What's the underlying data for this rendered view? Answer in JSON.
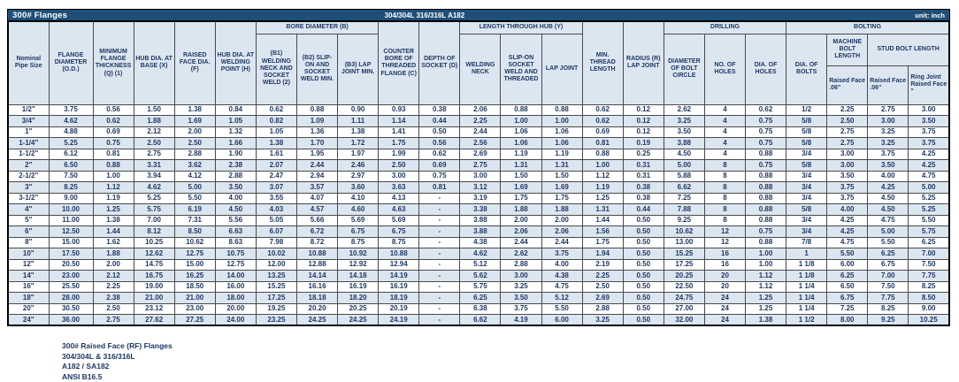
{
  "title_bar": {
    "title": "300# Flanges",
    "material": "304/304L 316/316L A182",
    "unit": "unit: inch"
  },
  "colors": {
    "title_bar_bg": "#1F4E79",
    "header_bg": "#DCE6F1",
    "alt_row_bg": "#DCE6F1",
    "text": "#1F3864",
    "border": "#4a4a4a"
  },
  "table": {
    "groups": {
      "bore": "BORE DIAMETER (B)",
      "length_hub": "LENGTH THROUGH HUB (Y)",
      "drilling": "DRILLING",
      "bolting": "BOLTING"
    },
    "cols": {
      "pipe": "Nominal Pipe Size",
      "od": "FLANGE DIAMETER (O.D.)",
      "q": "MINIMUM FLANGE THICKNESS (Q) (1)",
      "x": "HUB DIA. AT BASE (X)",
      "f": "RAISED FACE DIA. (F)",
      "h": "HUB DIA. AT WELDING POINT (H)",
      "b1": "(B1) WELDING NECK AND SOCKET WELD (2)",
      "b2": "(B2) SLIP-ON AND SOCKET WELD MIN.",
      "b3": "(B3) LAP JOINT MIN.",
      "c": "COUNTER BORE OF THREADED FLANGE (C)",
      "d": "DEPTH OF SOCKET (D)",
      "wn": "WELDING NECK",
      "so": "SLIP-ON SOCKET WELD AND THREADED",
      "lj": "LAP JOINT",
      "mt": "MIN. THREAD LENGTH",
      "r": "RADIUS (R) LAP JOINT",
      "bc": "DIAMETER OF BOLT CIRCLE",
      "nh": "NO. OF HOLES",
      "dh": "DIA. OF HOLES",
      "db": "DIA. OF BOLTS",
      "mbl": "MACHINE BOLT LENGTH",
      "sbl": "STUD BOLT LENGTH",
      "rf_machine": "Raised Face .06\"",
      "rf_stud": "Raised Face .06\"",
      "ring": "Ring Joint Raised Face \""
    },
    "rows": [
      [
        "1/2\"",
        "3.75",
        "0.56",
        "1.50",
        "1.38",
        "0.84",
        "0.62",
        "0.88",
        "0.90",
        "0.93",
        "0.38",
        "2.06",
        "0.88",
        "0.88",
        "0.62",
        "0.12",
        "2.62",
        "4",
        "0.62",
        "1/2",
        "2.25",
        "2.75",
        "3.00"
      ],
      [
        "3/4\"",
        "4.62",
        "0.62",
        "1.88",
        "1.69",
        "1.05",
        "0.82",
        "1.09",
        "1.11",
        "1.14",
        "0.44",
        "2.25",
        "1.00",
        "1.00",
        "0.62",
        "0.12",
        "3.25",
        "4",
        "0.75",
        "5/8",
        "2.50",
        "3.00",
        "3.50"
      ],
      [
        "1\"",
        "4.88",
        "0.69",
        "2.12",
        "2.00",
        "1.32",
        "1.05",
        "1.36",
        "1.38",
        "1.41",
        "0.50",
        "2.44",
        "1.06",
        "1.06",
        "0.69",
        "0.12",
        "3.50",
        "4",
        "0.75",
        "5/8",
        "2.75",
        "3.25",
        "3.75"
      ],
      [
        "1-1/4\"",
        "5.25",
        "0.75",
        "2.50",
        "2.50",
        "1.66",
        "1.38",
        "1.70",
        "1.72",
        "1.75",
        "0.56",
        "2.56",
        "1.06",
        "1.06",
        "0.81",
        "0.19",
        "3.88",
        "4",
        "0.75",
        "5/8",
        "2.75",
        "3.25",
        "3.75"
      ],
      [
        "1-1/2\"",
        "6.12",
        "0.81",
        "2.75",
        "2.88",
        "1.90",
        "1.61",
        "1.95",
        "1.97",
        "1.99",
        "0.62",
        "2.69",
        "1.19",
        "1.19",
        "0.88",
        "0.25",
        "4.50",
        "4",
        "0.88",
        "3/4",
        "3.00",
        "3.75",
        "4.25"
      ],
      [
        "2\"",
        "6.50",
        "0.88",
        "3.31",
        "3.62",
        "2.38",
        "2.07",
        "2.44",
        "2.46",
        "2.50",
        "0.69",
        "2.75",
        "1.31",
        "1.31",
        "1.00",
        "0.31",
        "5.00",
        "8",
        "0.75",
        "5/8",
        "3.00",
        "3.50",
        "4.25"
      ],
      [
        "2-1/2\"",
        "7.50",
        "1.00",
        "3.94",
        "4.12",
        "2.88",
        "2.47",
        "2.94",
        "2.97",
        "3.00",
        "0.75",
        "3.00",
        "1.50",
        "1.50",
        "1.12",
        "0.31",
        "5.88",
        "8",
        "0.88",
        "3/4",
        "3.50",
        "4.00",
        "4.75"
      ],
      [
        "3\"",
        "8.25",
        "1.12",
        "4.62",
        "5.00",
        "3.50",
        "3.07",
        "3.57",
        "3.60",
        "3.63",
        "0.81",
        "3.12",
        "1.69",
        "1.69",
        "1.19",
        "0.38",
        "6.62",
        "8",
        "0.88",
        "3/4",
        "3.75",
        "4.25",
        "5.00"
      ],
      [
        "3-1/2\"",
        "9.00",
        "1.19",
        "5.25",
        "5.50",
        "4.00",
        "3.55",
        "4.07",
        "4.10",
        "4.13",
        "-",
        "3.19",
        "1.75",
        "1.75",
        "1.25",
        "0.38",
        "7.25",
        "8",
        "0.88",
        "3/4",
        "3.75",
        "4.50",
        "5.25"
      ],
      [
        "4\"",
        "10.00",
        "1.25",
        "5.75",
        "6.19",
        "4.50",
        "4.03",
        "4.57",
        "4.60",
        "4.63",
        "-",
        "3.38",
        "1.88",
        "1.88",
        "1.31",
        "0.44",
        "7.88",
        "8",
        "0.88",
        "5/8",
        "4.00",
        "4.50",
        "5.25"
      ],
      [
        "5\"",
        "11.00",
        "1.38",
        "7.00",
        "7.31",
        "5.56",
        "5.05",
        "5.66",
        "5.69",
        "5.69",
        "-",
        "3.88",
        "2.00",
        "2.00",
        "1.44",
        "0.50",
        "9.25",
        "8",
        "0.88",
        "3/4",
        "4.25",
        "4.75",
        "5.50"
      ],
      [
        "6\"",
        "12.50",
        "1.44",
        "8.12",
        "8.50",
        "6.63",
        "6.07",
        "6.72",
        "6.75",
        "6.75",
        "-",
        "3.88",
        "2.06",
        "2.06",
        "1.56",
        "0.50",
        "10.62",
        "12",
        "0.75",
        "3/4",
        "4.25",
        "5.00",
        "5.75"
      ],
      [
        "8\"",
        "15.00",
        "1.62",
        "10.25",
        "10.62",
        "8.63",
        "7.98",
        "8.72",
        "8.75",
        "8.75",
        "-",
        "4.38",
        "2.44",
        "2.44",
        "1.75",
        "0.50",
        "13.00",
        "12",
        "0.88",
        "7/8",
        "4.75",
        "5.50",
        "6.25"
      ],
      [
        "10\"",
        "17.50",
        "1.88",
        "12.62",
        "12.75",
        "10.75",
        "10.02",
        "10.88",
        "10.92",
        "10.88",
        "-",
        "4.62",
        "2.62",
        "3.75",
        "1.94",
        "0.50",
        "15.25",
        "16",
        "1.00",
        "1",
        "5.50",
        "6.25",
        "7.00"
      ],
      [
        "12\"",
        "20.50",
        "2.00",
        "14.75",
        "15.00",
        "12.75",
        "12.00",
        "12.88",
        "12.92",
        "12.94",
        "-",
        "5.12",
        "2.88",
        "4.00",
        "2.19",
        "0.50",
        "17.25",
        "16",
        "1.00",
        "1 1/8",
        "6.00",
        "6.75",
        "7.50"
      ],
      [
        "14\"",
        "23.00",
        "2.12",
        "16.75",
        "16.25",
        "14.00",
        "13.25",
        "14.14",
        "14.18",
        "14.19",
        "-",
        "5.62",
        "3.00",
        "4.38",
        "2.25",
        "0.50",
        "20.25",
        "20",
        "1.12",
        "1 1/8",
        "6.25",
        "7.00",
        "7.75"
      ],
      [
        "16\"",
        "25.50",
        "2.25",
        "19.00",
        "18.50",
        "16.00",
        "15.25",
        "16.16",
        "16.19",
        "16.19",
        "-",
        "5.75",
        "3.25",
        "4.75",
        "2.50",
        "0.50",
        "22.50",
        "20",
        "1.12",
        "1 1/4",
        "6.50",
        "7.50",
        "8.25"
      ],
      [
        "18\"",
        "28.00",
        "2.38",
        "21.00",
        "21.00",
        "18.00",
        "17.25",
        "18.18",
        "18.20",
        "18.19",
        "-",
        "6.25",
        "3.50",
        "5.12",
        "2.69",
        "0.50",
        "24.75",
        "24",
        "1.25",
        "1 1/4",
        "6.75",
        "7.75",
        "8.50"
      ],
      [
        "20\"",
        "30.50",
        "2.50",
        "23.12",
        "23.00",
        "20.00",
        "19.25",
        "20.20",
        "20.25",
        "20.19",
        "-",
        "6.38",
        "3.75",
        "5.50",
        "2.88",
        "0.50",
        "27.00",
        "24",
        "1.25",
        "1 1/4",
        "7.25",
        "8.25",
        "9.00"
      ],
      [
        "24\"",
        "36.00",
        "2.75",
        "27.62",
        "27.25",
        "24.00",
        "23.25",
        "24.25",
        "24.25",
        "24.19",
        "-",
        "6.62",
        "4.19",
        "6.00",
        "3.25",
        "0.50",
        "32.00",
        "24",
        "1.38",
        "1 1/2",
        "8.00",
        "9.25",
        "10.25"
      ]
    ]
  },
  "footer": {
    "lines": [
      "300# Raised Face (RF) Flanges",
      "304/304L & 316/316L",
      "A182 / SA182",
      "ANSI B16.5"
    ]
  }
}
